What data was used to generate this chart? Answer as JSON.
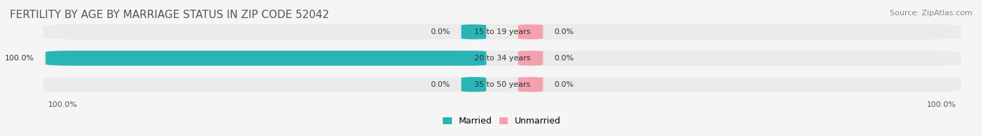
{
  "title": "FERTILITY BY AGE BY MARRIAGE STATUS IN ZIP CODE 52042",
  "source_text": "Source: ZipAtlas.com",
  "rows": [
    {
      "label": "15 to 19 years",
      "married": 0.0,
      "unmarried": 0.0
    },
    {
      "label": "20 to 34 years",
      "married": 100.0,
      "unmarried": 0.0
    },
    {
      "label": "35 to 50 years",
      "married": 0.0,
      "unmarried": 0.0
    }
  ],
  "married_color": "#29b5b5",
  "unmarried_color": "#f4a0b0",
  "bar_bg_color": "#e8e8e8",
  "background_color": "#f5f5f5",
  "row_bg_color": "#ebebeb",
  "title_fontsize": 11,
  "source_fontsize": 8,
  "label_fontsize": 8,
  "value_fontsize": 8,
  "legend_fontsize": 9,
  "left_axis_label": "100.0%",
  "right_axis_label": "100.0%",
  "max_val": 100.0
}
